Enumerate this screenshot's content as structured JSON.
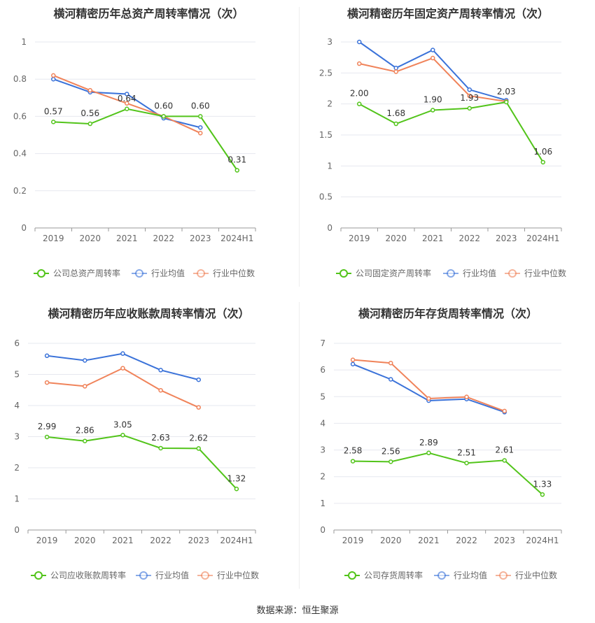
{
  "colors": {
    "company": "#52c41a",
    "avg": "#3a72d9",
    "median": "#f0835a",
    "grid": "#e6e8ef",
    "axis": "#999999",
    "text": "#666666"
  },
  "chart_data": [
    {
      "type": "line",
      "title": "横河精密历年总资产周转率情况（次）",
      "categories": [
        "2019",
        "2020",
        "2021",
        "2022",
        "2023",
        "2024H1"
      ],
      "yticks": [
        "0",
        "0.2",
        "0.4",
        "0.6",
        "0.8",
        "1"
      ],
      "ylim": [
        0,
        1
      ],
      "series": [
        {
          "name": "公司总资产周转率",
          "role": "company",
          "values": [
            0.57,
            0.56,
            0.64,
            0.6,
            0.6,
            0.31
          ],
          "labels": [
            "0.57",
            "0.56",
            "0.64",
            "0.60",
            "0.60",
            "0.31"
          ]
        },
        {
          "name": "行业均值",
          "role": "avg",
          "values": [
            0.8,
            0.73,
            0.72,
            0.59,
            0.54,
            null
          ]
        },
        {
          "name": "行业中位数",
          "role": "median",
          "values": [
            0.82,
            0.74,
            0.67,
            0.6,
            0.51,
            null
          ]
        }
      ]
    },
    {
      "type": "line",
      "title": "横河精密历年固定资产周转率情况（次）",
      "categories": [
        "2019",
        "2020",
        "2021",
        "2022",
        "2023",
        "2024H1"
      ],
      "yticks": [
        "0",
        "0.5",
        "1",
        "1.5",
        "2",
        "2.5",
        "3"
      ],
      "ylim": [
        0,
        3
      ],
      "series": [
        {
          "name": "公司固定资产周转率",
          "role": "company",
          "values": [
            2.0,
            1.68,
            1.9,
            1.93,
            2.03,
            1.06
          ],
          "labels": [
            "2.00",
            "1.68",
            "1.90",
            "1.93",
            "2.03",
            "1.06"
          ]
        },
        {
          "name": "行业均值",
          "role": "avg",
          "values": [
            3.0,
            2.58,
            2.87,
            2.23,
            2.06,
            null
          ]
        },
        {
          "name": "行业中位数",
          "role": "median",
          "values": [
            2.65,
            2.52,
            2.74,
            2.13,
            2.04,
            null
          ]
        }
      ]
    },
    {
      "type": "line",
      "title": "横河精密历年应收账款周转率情况（次）",
      "categories": [
        "2019",
        "2020",
        "2021",
        "2022",
        "2023",
        "2024H1"
      ],
      "yticks": [
        "0",
        "1",
        "2",
        "3",
        "4",
        "5",
        "6"
      ],
      "ylim": [
        0,
        6
      ],
      "series": [
        {
          "name": "公司应收账款周转率",
          "role": "company",
          "values": [
            2.99,
            2.86,
            3.05,
            2.63,
            2.62,
            1.32
          ],
          "labels": [
            "2.99",
            "2.86",
            "3.05",
            "2.63",
            "2.62",
            "1.32"
          ]
        },
        {
          "name": "行业均值",
          "role": "avg",
          "values": [
            5.6,
            5.45,
            5.67,
            5.14,
            4.83,
            null
          ]
        },
        {
          "name": "行业中位数",
          "role": "median",
          "values": [
            4.74,
            4.62,
            5.2,
            4.49,
            3.94,
            null
          ]
        }
      ]
    },
    {
      "type": "line",
      "title": "横河精密历年存货周转率情况（次）",
      "categories": [
        "2019",
        "2020",
        "2021",
        "2022",
        "2023",
        "2024H1"
      ],
      "yticks": [
        "0",
        "1",
        "2",
        "3",
        "4",
        "5",
        "6",
        "7"
      ],
      "ylim": [
        0,
        7
      ],
      "series": [
        {
          "name": "公司存货周转率",
          "role": "company",
          "values": [
            2.58,
            2.56,
            2.89,
            2.51,
            2.61,
            1.33
          ],
          "labels": [
            "2.58",
            "2.56",
            "2.89",
            "2.51",
            "2.61",
            "1.33"
          ]
        },
        {
          "name": "行业均值",
          "role": "avg",
          "values": [
            6.22,
            5.65,
            4.85,
            4.91,
            4.42,
            null
          ]
        },
        {
          "name": "行业中位数",
          "role": "median",
          "values": [
            6.38,
            6.26,
            4.93,
            4.99,
            4.46,
            null
          ]
        }
      ]
    }
  ],
  "footer": {
    "source": "数据来源：恒生聚源"
  }
}
